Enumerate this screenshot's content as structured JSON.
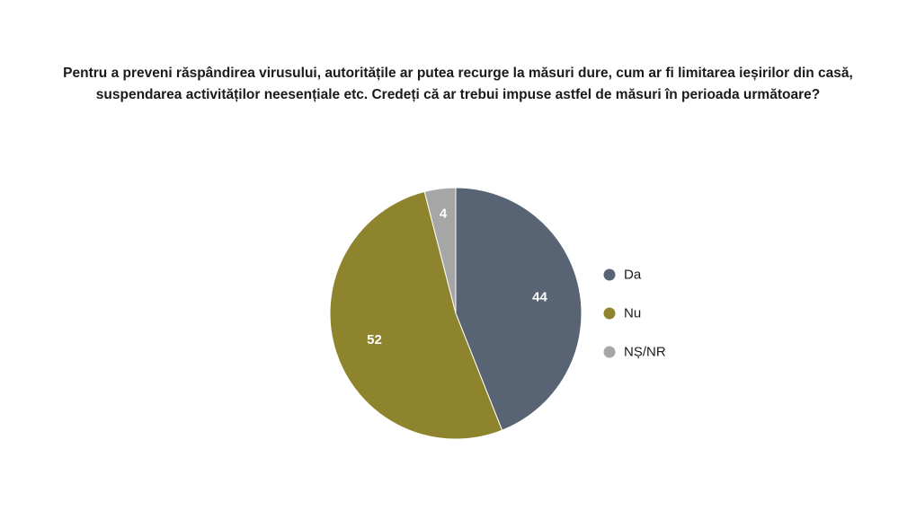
{
  "chart_data": {
    "type": "pie",
    "title_lines": [
      "Pentru a preveni răspândirea virusului, autoritățile ar putea recurge la măsuri dure, cum ar fi limitarea ieșirilor din casă,",
      "suspendarea activităților neesențiale etc. Credeți că ar trebui impuse astfel de măsuri în perioada următoare?"
    ],
    "slices": [
      {
        "label": "Da",
        "value": 44,
        "value_label": "44",
        "color": "#586473"
      },
      {
        "label": "Nu",
        "value": 52,
        "value_label": "52",
        "color": "#8f842e"
      },
      {
        "label": "NȘ/NR",
        "value": 4,
        "value_label": "4",
        "color": "#a6a6a6"
      }
    ],
    "start": "12 o'clock, clockwise",
    "legend_position": "right"
  }
}
